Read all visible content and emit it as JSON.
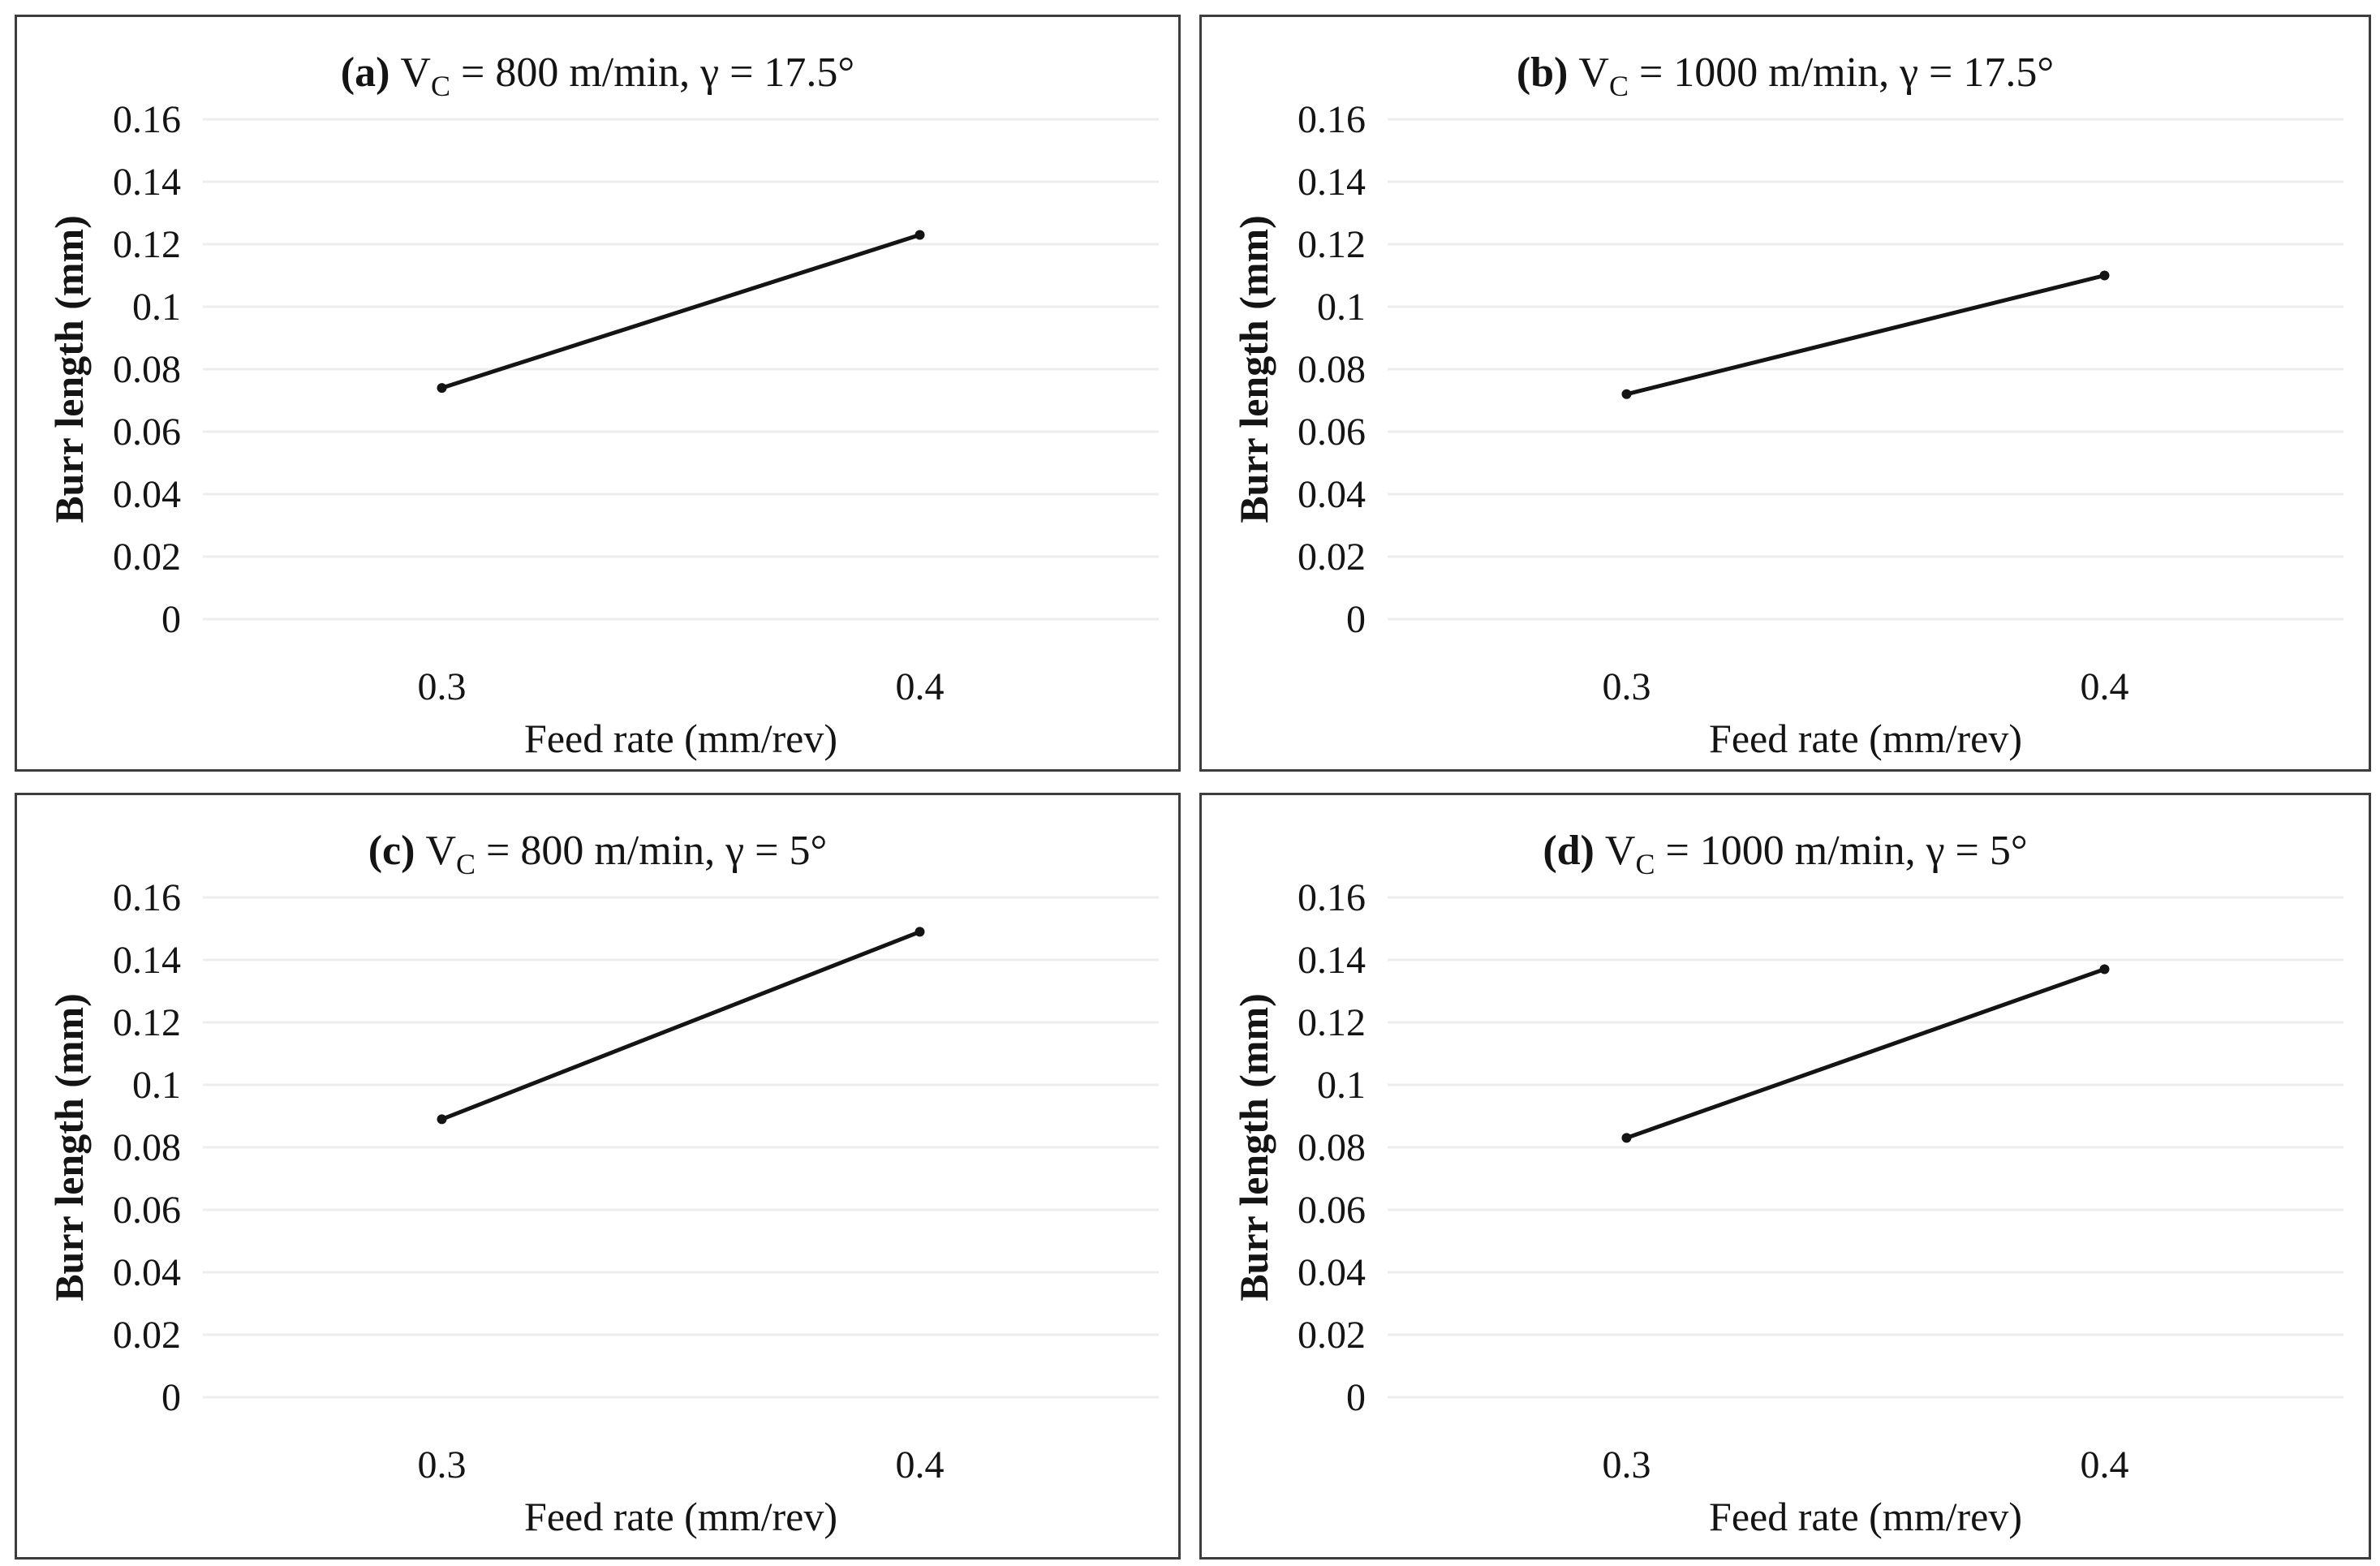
{
  "figure": {
    "background_color": "#ffffff",
    "shared_axes": {
      "ylabel": "Burr length (mm)",
      "xlabel": "Feed rate (mm/rev)",
      "x_tick_labels": [
        "0.3",
        "0.4"
      ],
      "y_ticks": [
        {
          "value": 0,
          "label": "0"
        },
        {
          "value": 0.02,
          "label": "0.02"
        },
        {
          "value": 0.04,
          "label": "0.04"
        },
        {
          "value": 0.06,
          "label": "0.06"
        },
        {
          "value": 0.08,
          "label": "0.08"
        },
        {
          "value": 0.1,
          "label": "0.1"
        },
        {
          "value": 0.12,
          "label": "0.12"
        },
        {
          "value": 0.14,
          "label": "0.14"
        },
        {
          "value": 0.16,
          "label": "0.16"
        }
      ],
      "ylim": [
        0,
        0.16
      ],
      "grid": "horizontal-only"
    },
    "colors": {
      "line": "#141414",
      "marker": "#141414",
      "gridline": "#ededed",
      "border": "#3d3d3d",
      "text": "#141414",
      "background": "#ffffff"
    }
  },
  "chart_data": [
    {
      "type": "line",
      "panel_id": "a",
      "title": "(a) Vc = 800 m/min, γ = 17.5°",
      "title_parts": {
        "bold_label": "(a)",
        "base": "V",
        "subscript": "C",
        "rest": "= 800 m/min, γ = 17.5°"
      },
      "xlabel": "Feed rate (mm/rev)",
      "ylabel": "Burr length (mm)",
      "categories": [
        0.3,
        0.4
      ],
      "x_tick_labels": [
        "0.3",
        "0.4"
      ],
      "values": [
        0.074,
        0.123
      ],
      "ylim": [
        0,
        0.16
      ],
      "ytick_step": 0.02,
      "legend": "none"
    },
    {
      "type": "line",
      "panel_id": "b",
      "title": "(b) Vc = 1000 m/min, γ = 17.5°",
      "title_parts": {
        "bold_label": "(b)",
        "base": "V",
        "subscript": "C",
        "rest": "= 1000 m/min, γ = 17.5°"
      },
      "xlabel": "Feed rate (mm/rev)",
      "ylabel": "Burr length (mm)",
      "categories": [
        0.3,
        0.4
      ],
      "x_tick_labels": [
        "0.3",
        "0.4"
      ],
      "values": [
        0.072,
        0.11
      ],
      "ylim": [
        0,
        0.16
      ],
      "ytick_step": 0.02,
      "legend": "none"
    },
    {
      "type": "line",
      "panel_id": "c",
      "title": "(c) Vc = 800 m/min, γ = 5°",
      "title_parts": {
        "bold_label": "(c)",
        "base": "V",
        "subscript": "C",
        "rest": "= 800 m/min, γ = 5°"
      },
      "xlabel": "Feed rate (mm/rev)",
      "ylabel": "Burr length (mm)",
      "categories": [
        0.3,
        0.4
      ],
      "x_tick_labels": [
        "0.3",
        "0.4"
      ],
      "values": [
        0.089,
        0.149
      ],
      "ylim": [
        0,
        0.16
      ],
      "ytick_step": 0.02,
      "legend": "none"
    },
    {
      "type": "line",
      "panel_id": "d",
      "title": "(d) Vc = 1000 m/min, γ = 5°",
      "title_parts": {
        "bold_label": "(d)",
        "base": "V",
        "subscript": "C",
        "rest": "= 1000 m/min, γ = 5°"
      },
      "xlabel": "Feed rate (mm/rev)",
      "ylabel": "Burr length (mm)",
      "categories": [
        0.3,
        0.4
      ],
      "x_tick_labels": [
        "0.3",
        "0.4"
      ],
      "values": [
        0.083,
        0.137
      ],
      "ylim": [
        0,
        0.16
      ],
      "ytick_step": 0.02,
      "legend": "none"
    }
  ]
}
